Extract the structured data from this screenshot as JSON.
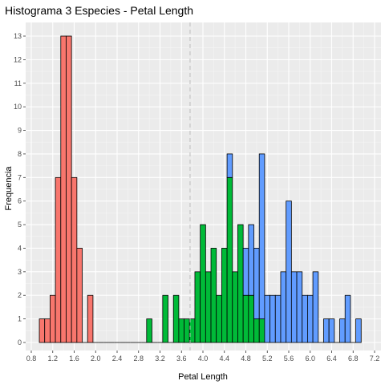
{
  "chart_data": {
    "type": "bar",
    "title": "Histograma 3 Especies - Petal Length",
    "xlabel": "Petal Length",
    "ylabel": "Frequencia",
    "xlim": [
      0.8,
      7.2
    ],
    "ylim": [
      0,
      13
    ],
    "bin_width": 0.1,
    "x_ticks": [
      "0.8",
      "1.2",
      "1.6",
      "2.0",
      "2.4",
      "2.8",
      "3.2",
      "3.6",
      "4.0",
      "4.4",
      "4.8",
      "5.2",
      "5.6",
      "6.0",
      "6.4",
      "6.8",
      "7.2"
    ],
    "y_ticks": [
      "0",
      "1",
      "2",
      "3",
      "4",
      "5",
      "6",
      "7",
      "8",
      "9",
      "10",
      "11",
      "12",
      "13"
    ],
    "reference_line_x": 3.76,
    "grid": true,
    "legend": "none",
    "series": [
      {
        "color": "#F8766D",
        "bins": [
          {
            "x": 1.0,
            "count": 1
          },
          {
            "x": 1.1,
            "count": 1
          },
          {
            "x": 1.2,
            "count": 2
          },
          {
            "x": 1.3,
            "count": 7
          },
          {
            "x": 1.4,
            "count": 13
          },
          {
            "x": 1.5,
            "count": 13
          },
          {
            "x": 1.6,
            "count": 7
          },
          {
            "x": 1.7,
            "count": 4
          },
          {
            "x": 1.9,
            "count": 2
          }
        ]
      },
      {
        "color": "#00BA38",
        "bins": [
          {
            "x": 3.0,
            "count": 1
          },
          {
            "x": 3.3,
            "count": 2
          },
          {
            "x": 3.5,
            "count": 2
          },
          {
            "x": 3.6,
            "count": 1
          },
          {
            "x": 3.7,
            "count": 1
          },
          {
            "x": 3.8,
            "count": 1
          },
          {
            "x": 3.9,
            "count": 3
          },
          {
            "x": 4.0,
            "count": 5
          },
          {
            "x": 4.1,
            "count": 3
          },
          {
            "x": 4.2,
            "count": 4
          },
          {
            "x": 4.3,
            "count": 2
          },
          {
            "x": 4.4,
            "count": 4
          },
          {
            "x": 4.5,
            "count": 7
          },
          {
            "x": 4.6,
            "count": 3
          },
          {
            "x": 4.7,
            "count": 5
          },
          {
            "x": 4.8,
            "count": 2
          },
          {
            "x": 4.9,
            "count": 2
          },
          {
            "x": 5.0,
            "count": 1
          },
          {
            "x": 5.1,
            "count": 1
          }
        ]
      },
      {
        "color": "#619CFF",
        "bins": [
          {
            "x": 4.5,
            "count": 1
          },
          {
            "x": 4.8,
            "count": 2
          },
          {
            "x": 4.9,
            "count": 3
          },
          {
            "x": 5.0,
            "count": 3
          },
          {
            "x": 5.1,
            "count": 7
          },
          {
            "x": 5.2,
            "count": 2
          },
          {
            "x": 5.3,
            "count": 2
          },
          {
            "x": 5.4,
            "count": 2
          },
          {
            "x": 5.5,
            "count": 3
          },
          {
            "x": 5.6,
            "count": 6
          },
          {
            "x": 5.7,
            "count": 3
          },
          {
            "x": 5.8,
            "count": 3
          },
          {
            "x": 5.9,
            "count": 2
          },
          {
            "x": 6.0,
            "count": 2
          },
          {
            "x": 6.1,
            "count": 3
          },
          {
            "x": 6.3,
            "count": 1
          },
          {
            "x": 6.4,
            "count": 1
          },
          {
            "x": 6.6,
            "count": 1
          },
          {
            "x": 6.7,
            "count": 2
          },
          {
            "x": 6.9,
            "count": 1
          }
        ]
      }
    ]
  }
}
